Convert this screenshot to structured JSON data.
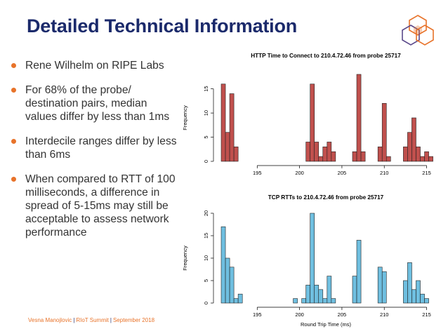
{
  "slide": {
    "title": "Detailed Technical Information"
  },
  "bullets": [
    "Rene Wilhelm on RIPE Labs",
    "For 68% of the probe/ destination pairs, median values differ by less than 1ms",
    "Interdecile ranges differ by less than 6ms",
    "When compared to RTT of 100 milliseconds, a difference in spread of 5-15ms may still be acceptable to assess network performance"
  ],
  "footer": {
    "author": "Vesna Manojlovic",
    "event": "RIoT Summit",
    "date": "September 2018"
  },
  "colors": {
    "title": "#1b2a6b",
    "bullet_dot": "#e8732a",
    "footer": "#e8732a",
    "http_bar": "#c0504d",
    "tcp_bar": "#6fbfe0",
    "logo_orange": "#e8732a",
    "logo_purple": "#5b4a8b"
  },
  "chart_data": [
    {
      "type": "bar",
      "title": "HTTP Time to Connect to 210.4.72.46 from probe 25717",
      "xlabel": "",
      "ylabel": "Frequency",
      "xlim": [
        190.5,
        215.7
      ],
      "ylim": [
        0,
        18
      ],
      "xticks": [
        195,
        200,
        205,
        210,
        215
      ],
      "yticks": [
        0,
        5,
        10,
        15
      ],
      "bin_width": 0.5,
      "bins": [
        {
          "x": 191.0,
          "value": 16
        },
        {
          "x": 191.5,
          "value": 6
        },
        {
          "x": 192.0,
          "value": 14
        },
        {
          "x": 192.5,
          "value": 3
        },
        {
          "x": 201.0,
          "value": 4
        },
        {
          "x": 201.5,
          "value": 16
        },
        {
          "x": 202.0,
          "value": 4
        },
        {
          "x": 202.5,
          "value": 1
        },
        {
          "x": 203.0,
          "value": 3
        },
        {
          "x": 203.5,
          "value": 4
        },
        {
          "x": 204.0,
          "value": 2
        },
        {
          "x": 206.5,
          "value": 2
        },
        {
          "x": 207.0,
          "value": 18
        },
        {
          "x": 207.5,
          "value": 2
        },
        {
          "x": 209.5,
          "value": 3
        },
        {
          "x": 210.0,
          "value": 12
        },
        {
          "x": 210.5,
          "value": 1
        },
        {
          "x": 212.5,
          "value": 3
        },
        {
          "x": 213.0,
          "value": 6
        },
        {
          "x": 213.5,
          "value": 9
        },
        {
          "x": 214.0,
          "value": 3
        },
        {
          "x": 214.5,
          "value": 1
        },
        {
          "x": 215.0,
          "value": 2
        },
        {
          "x": 215.5,
          "value": 1
        }
      ]
    },
    {
      "type": "bar",
      "title": "TCP RTTs to 210.4.72.46 from probe 25717",
      "xlabel": "Round Trip Time (ms)",
      "ylabel": "Frequency",
      "xlim": [
        190.5,
        215.7
      ],
      "ylim": [
        0,
        20
      ],
      "xticks": [
        195,
        200,
        205,
        210,
        215
      ],
      "yticks": [
        0,
        5,
        10,
        15,
        20
      ],
      "bin_width": 0.5,
      "bins": [
        {
          "x": 191.0,
          "value": 17
        },
        {
          "x": 191.5,
          "value": 10
        },
        {
          "x": 192.0,
          "value": 8
        },
        {
          "x": 192.5,
          "value": 1
        },
        {
          "x": 193.0,
          "value": 2
        },
        {
          "x": 199.5,
          "value": 1
        },
        {
          "x": 200.5,
          "value": 1
        },
        {
          "x": 201.0,
          "value": 4
        },
        {
          "x": 201.5,
          "value": 20
        },
        {
          "x": 202.0,
          "value": 4
        },
        {
          "x": 202.5,
          "value": 3
        },
        {
          "x": 203.0,
          "value": 1
        },
        {
          "x": 203.5,
          "value": 6
        },
        {
          "x": 204.0,
          "value": 1
        },
        {
          "x": 206.5,
          "value": 6
        },
        {
          "x": 207.0,
          "value": 14
        },
        {
          "x": 209.5,
          "value": 8
        },
        {
          "x": 210.0,
          "value": 7
        },
        {
          "x": 212.5,
          "value": 5
        },
        {
          "x": 213.0,
          "value": 9
        },
        {
          "x": 213.5,
          "value": 3
        },
        {
          "x": 214.0,
          "value": 5
        },
        {
          "x": 214.5,
          "value": 2
        },
        {
          "x": 215.0,
          "value": 1
        }
      ]
    }
  ]
}
